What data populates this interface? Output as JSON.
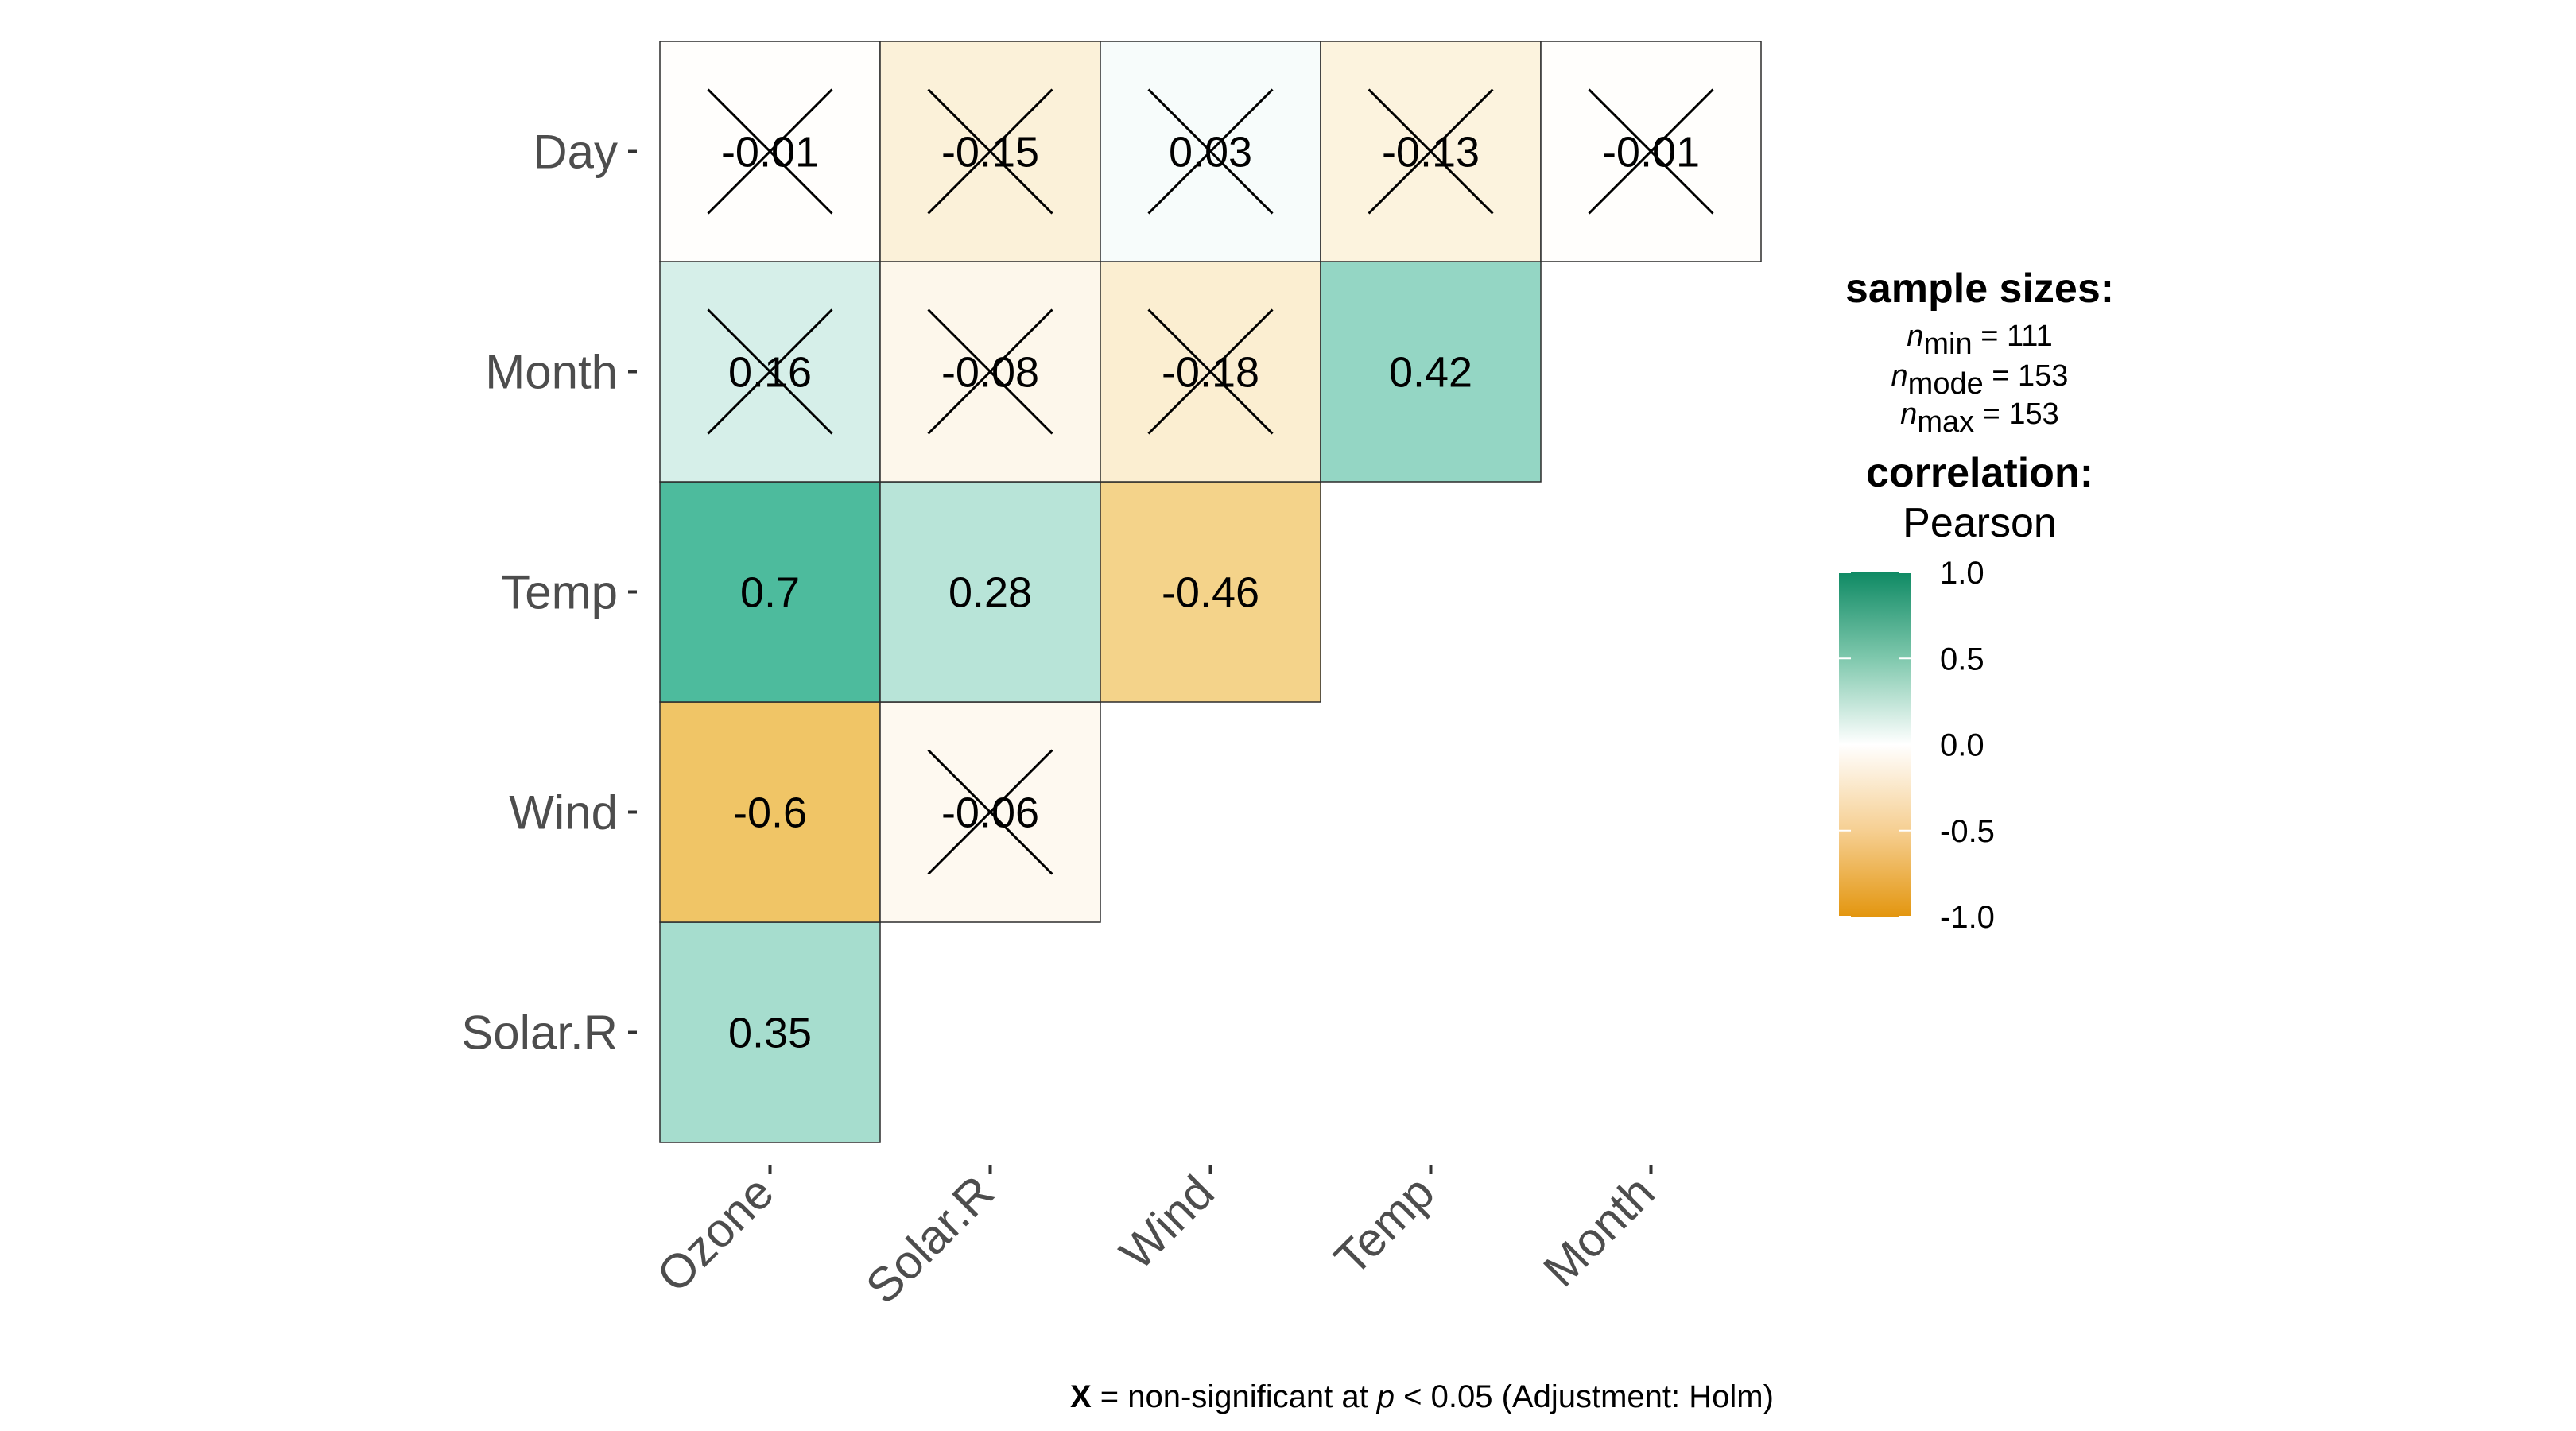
{
  "chart_data": {
    "type": "heatmap",
    "x_categories": [
      "Ozone",
      "Solar.R",
      "Wind",
      "Temp",
      "Month"
    ],
    "y_categories": [
      "Solar.R",
      "Wind",
      "Temp",
      "Month",
      "Day"
    ],
    "cells": [
      {
        "x": "Ozone",
        "y": "Solar.R",
        "value": 0.35,
        "label": "0.35",
        "nonsignificant": false
      },
      {
        "x": "Ozone",
        "y": "Wind",
        "value": -0.6,
        "label": "-0.6",
        "nonsignificant": false
      },
      {
        "x": "Solar.R",
        "y": "Wind",
        "value": -0.06,
        "label": "-0.06",
        "nonsignificant": true
      },
      {
        "x": "Ozone",
        "y": "Temp",
        "value": 0.7,
        "label": "0.7",
        "nonsignificant": false
      },
      {
        "x": "Solar.R",
        "y": "Temp",
        "value": 0.28,
        "label": "0.28",
        "nonsignificant": false
      },
      {
        "x": "Wind",
        "y": "Temp",
        "value": -0.46,
        "label": "-0.46",
        "nonsignificant": false
      },
      {
        "x": "Ozone",
        "y": "Month",
        "value": 0.16,
        "label": "0.16",
        "nonsignificant": true
      },
      {
        "x": "Solar.R",
        "y": "Month",
        "value": -0.08,
        "label": "-0.08",
        "nonsignificant": true
      },
      {
        "x": "Wind",
        "y": "Month",
        "value": -0.18,
        "label": "-0.18",
        "nonsignificant": true
      },
      {
        "x": "Temp",
        "y": "Month",
        "value": 0.42,
        "label": "0.42",
        "nonsignificant": false
      },
      {
        "x": "Ozone",
        "y": "Day",
        "value": -0.01,
        "label": "-0.01",
        "nonsignificant": true
      },
      {
        "x": "Solar.R",
        "y": "Day",
        "value": -0.15,
        "label": "-0.15",
        "nonsignificant": true
      },
      {
        "x": "Wind",
        "y": "Day",
        "value": 0.03,
        "label": "0.03",
        "nonsignificant": true
      },
      {
        "x": "Temp",
        "y": "Day",
        "value": -0.13,
        "label": "-0.13",
        "nonsignificant": true
      },
      {
        "x": "Month",
        "y": "Day",
        "value": -0.01,
        "label": "-0.01",
        "nonsignificant": true
      }
    ],
    "color_scale": {
      "low": "#E69F00",
      "mid": "#FFFFFF",
      "high": "#009E73",
      "limits": [
        -1.0,
        1.0
      ],
      "ticks": [
        "1.0",
        "0.5",
        "0.0",
        "-0.5",
        "-1.0"
      ]
    },
    "legend": {
      "sample_sizes_title": "sample sizes:",
      "n_symbol": "n",
      "n_rows": [
        {
          "sub": "min",
          "value": "= 111"
        },
        {
          "sub": "mode",
          "value": "= 153"
        },
        {
          "sub": "max",
          "value": "= 153"
        }
      ],
      "correlation_title": "correlation:",
      "correlation_method": "Pearson"
    },
    "caption": {
      "x_symbol": "X",
      "part1": " = non-significant at ",
      "p_symbol": "p",
      "part2": " < 0.05 (Adjustment: Holm)"
    }
  }
}
